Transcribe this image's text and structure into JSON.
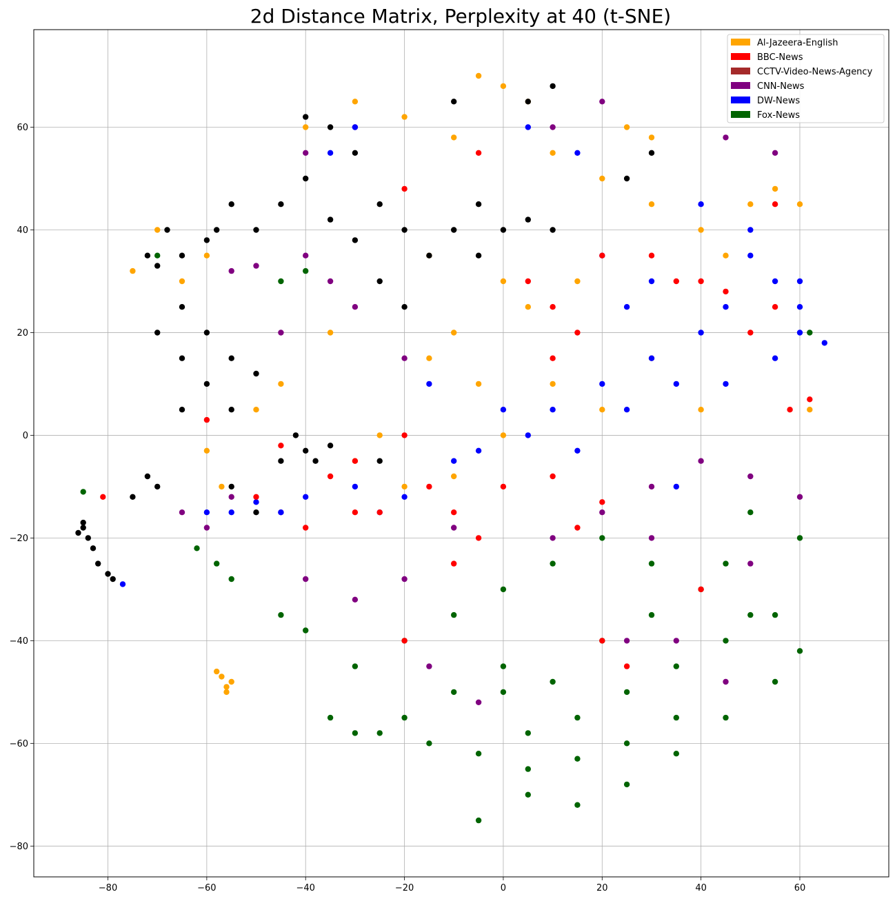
{
  "chart_data": {
    "type": "scatter",
    "title": "2d Distance Matrix, Perplexity at 40 (t-SNE)",
    "xlabel": "",
    "ylabel": "",
    "xlim": [
      -95,
      78
    ],
    "ylim": [
      -86,
      79
    ],
    "xticks": [
      -80,
      -60,
      -40,
      -20,
      0,
      20,
      40,
      60
    ],
    "yticks": [
      -80,
      -60,
      -40,
      -20,
      0,
      20,
      40,
      60
    ],
    "xtick_labels": [
      "−80",
      "−60",
      "−40",
      "−20",
      "0",
      "20",
      "40",
      "60"
    ],
    "ytick_labels": [
      "−80",
      "−60",
      "−40",
      "−20",
      "0",
      "20",
      "40",
      "60"
    ],
    "grid": true,
    "legend_position": "top-right",
    "legend": [
      {
        "name": "Al-Jazeera-English",
        "color": "#FFA500"
      },
      {
        "name": "BBC-News",
        "color": "#FF0000"
      },
      {
        "name": "CCTV-Video-News-Agency",
        "color": "#A52A2A"
      },
      {
        "name": "CNN-News",
        "color": "#800080"
      },
      {
        "name": "DW-News",
        "color": "#0000FF"
      },
      {
        "name": "Fox-News",
        "color": "#006400"
      }
    ],
    "series": [
      {
        "color": "#006400",
        "points": [
          [
            -5,
            -75
          ],
          [
            5,
            -70
          ],
          [
            15,
            -72
          ],
          [
            25,
            -68
          ],
          [
            35,
            -62
          ],
          [
            45,
            -55
          ],
          [
            55,
            -48
          ],
          [
            60,
            -42
          ],
          [
            50,
            -35
          ],
          [
            40,
            -30
          ],
          [
            30,
            -25
          ],
          [
            20,
            -20
          ],
          [
            10,
            -25
          ],
          [
            0,
            -30
          ],
          [
            -10,
            -35
          ],
          [
            -20,
            -40
          ],
          [
            -30,
            -45
          ],
          [
            -35,
            -55
          ],
          [
            -25,
            -58
          ],
          [
            -15,
            -60
          ],
          [
            -5,
            -62
          ],
          [
            5,
            -58
          ],
          [
            15,
            -55
          ],
          [
            25,
            -50
          ],
          [
            35,
            -45
          ],
          [
            45,
            -40
          ],
          [
            55,
            -35
          ],
          [
            -58,
            -25
          ],
          [
            -62,
            -22
          ],
          [
            -55,
            -28
          ],
          [
            -40,
            -38
          ],
          [
            -45,
            -35
          ],
          [
            60,
            -20
          ],
          [
            50,
            -15
          ],
          [
            0,
            -45
          ],
          [
            10,
            -48
          ],
          [
            20,
            -40
          ],
          [
            30,
            -35
          ],
          [
            -10,
            -50
          ],
          [
            -20,
            -55
          ],
          [
            5,
            -65
          ],
          [
            15,
            -63
          ],
          [
            25,
            -60
          ],
          [
            35,
            -55
          ],
          [
            0,
            -50
          ],
          [
            -30,
            -58
          ],
          [
            45,
            -25
          ],
          [
            -85,
            -11
          ],
          [
            -40,
            32
          ],
          [
            -45,
            30
          ],
          [
            62,
            20
          ],
          [
            -70,
            35
          ]
        ]
      },
      {
        "color": "#800080",
        "points": [
          [
            -50,
            33
          ],
          [
            -55,
            32
          ],
          [
            -40,
            35
          ],
          [
            -35,
            30
          ],
          [
            -30,
            25
          ],
          [
            -45,
            20
          ],
          [
            -20,
            15
          ],
          [
            10,
            -20
          ],
          [
            20,
            -15
          ],
          [
            30,
            -10
          ],
          [
            40,
            -5
          ],
          [
            50,
            -8
          ],
          [
            60,
            -12
          ],
          [
            -10,
            -18
          ],
          [
            -20,
            -28
          ],
          [
            -30,
            -32
          ],
          [
            -40,
            -28
          ],
          [
            -45,
            -15
          ],
          [
            -55,
            -12
          ],
          [
            -60,
            -18
          ],
          [
            55,
            55
          ],
          [
            45,
            58
          ],
          [
            20,
            65
          ],
          [
            10,
            60
          ],
          [
            -30,
            60
          ],
          [
            -40,
            55
          ],
          [
            -15,
            -45
          ],
          [
            25,
            -40
          ],
          [
            35,
            -40
          ],
          [
            45,
            -48
          ],
          [
            -5,
            -52
          ],
          [
            30,
            -20
          ],
          [
            -65,
            -15
          ],
          [
            50,
            -25
          ]
        ]
      },
      {
        "color": "#FFA500",
        "points": [
          [
            -57,
            -47
          ],
          [
            -56,
            -49
          ],
          [
            -55,
            -48
          ],
          [
            -58,
            -46
          ],
          [
            -56,
            -50
          ],
          [
            -40,
            60
          ],
          [
            -30,
            65
          ],
          [
            -20,
            62
          ],
          [
            -10,
            58
          ],
          [
            0,
            68
          ],
          [
            5,
            65
          ],
          [
            -5,
            70
          ],
          [
            10,
            55
          ],
          [
            20,
            50
          ],
          [
            30,
            45
          ],
          [
            40,
            40
          ],
          [
            -10,
            20
          ],
          [
            -15,
            15
          ],
          [
            0,
            30
          ],
          [
            5,
            25
          ],
          [
            -5,
            10
          ],
          [
            -25,
            0
          ],
          [
            -30,
            -5
          ],
          [
            -20,
            -10
          ],
          [
            10,
            10
          ],
          [
            20,
            5
          ],
          [
            30,
            15
          ],
          [
            40,
            5
          ],
          [
            50,
            45
          ],
          [
            55,
            48
          ],
          [
            45,
            35
          ],
          [
            -35,
            20
          ],
          [
            -45,
            10
          ],
          [
            -50,
            5
          ],
          [
            -60,
            35
          ],
          [
            -70,
            40
          ],
          [
            -75,
            32
          ],
          [
            -60,
            -3
          ],
          [
            -57,
            -10
          ],
          [
            25,
            60
          ],
          [
            30,
            58
          ],
          [
            15,
            30
          ],
          [
            -15,
            35
          ],
          [
            62,
            5
          ],
          [
            60,
            45
          ],
          [
            -65,
            30
          ],
          [
            0,
            0
          ],
          [
            -10,
            -8
          ]
        ]
      },
      {
        "color": "#000000",
        "points": [
          [
            -85,
            -18
          ],
          [
            -84,
            -20
          ],
          [
            -86,
            -19
          ],
          [
            -83,
            -22
          ],
          [
            -82,
            -25
          ],
          [
            -80,
            -27
          ],
          [
            -79,
            -28
          ],
          [
            -85,
            -17
          ],
          [
            -70,
            -10
          ],
          [
            -75,
            -12
          ],
          [
            -72,
            -8
          ],
          [
            -65,
            5
          ],
          [
            -60,
            10
          ],
          [
            -55,
            15
          ],
          [
            -65,
            15
          ],
          [
            -60,
            20
          ],
          [
            -70,
            20
          ],
          [
            -55,
            5
          ],
          [
            -50,
            12
          ],
          [
            -58,
            40
          ],
          [
            -55,
            45
          ],
          [
            -50,
            40
          ],
          [
            -45,
            45
          ],
          [
            -40,
            50
          ],
          [
            -35,
            42
          ],
          [
            -30,
            38
          ],
          [
            -25,
            45
          ],
          [
            -20,
            40
          ],
          [
            -15,
            35
          ],
          [
            -25,
            30
          ],
          [
            -20,
            25
          ],
          [
            -10,
            40
          ],
          [
            -5,
            45
          ],
          [
            0,
            40
          ],
          [
            5,
            42
          ],
          [
            10,
            40
          ],
          [
            -5,
            35
          ],
          [
            -30,
            55
          ],
          [
            -35,
            60
          ],
          [
            -40,
            62
          ],
          [
            5,
            65
          ],
          [
            10,
            68
          ],
          [
            -10,
            65
          ],
          [
            -40,
            -3
          ],
          [
            -38,
            -5
          ],
          [
            -42,
            0
          ],
          [
            -35,
            -2
          ],
          [
            -60,
            38
          ],
          [
            -65,
            35
          ],
          [
            -68,
            40
          ],
          [
            -50,
            -15
          ],
          [
            -55,
            -10
          ],
          [
            -45,
            -5
          ],
          [
            -25,
            -5
          ],
          [
            30,
            55
          ],
          [
            25,
            50
          ],
          [
            -70,
            33
          ],
          [
            -72,
            35
          ],
          [
            -65,
            25
          ]
        ]
      },
      {
        "color": "#0000FF",
        "points": [
          [
            50,
            35
          ],
          [
            55,
            30
          ],
          [
            60,
            25
          ],
          [
            45,
            25
          ],
          [
            40,
            20
          ],
          [
            35,
            10
          ],
          [
            30,
            15
          ],
          [
            25,
            5
          ],
          [
            20,
            10
          ],
          [
            10,
            5
          ],
          [
            5,
            0
          ],
          [
            0,
            5
          ],
          [
            -5,
            -3
          ],
          [
            -10,
            -5
          ],
          [
            -20,
            -12
          ],
          [
            -25,
            -15
          ],
          [
            -30,
            -10
          ],
          [
            -40,
            -12
          ],
          [
            -45,
            -15
          ],
          [
            -55,
            -15
          ],
          [
            -50,
            -13
          ],
          [
            15,
            -3
          ],
          [
            35,
            -10
          ],
          [
            45,
            10
          ],
          [
            55,
            15
          ],
          [
            60,
            30
          ],
          [
            50,
            40
          ],
          [
            40,
            45
          ],
          [
            30,
            30
          ],
          [
            20,
            35
          ],
          [
            -35,
            55
          ],
          [
            -30,
            60
          ],
          [
            5,
            60
          ],
          [
            15,
            55
          ],
          [
            60,
            20
          ],
          [
            -77,
            -29
          ],
          [
            -60,
            -15
          ],
          [
            65,
            18
          ],
          [
            -15,
            10
          ],
          [
            25,
            25
          ]
        ]
      },
      {
        "color": "#FF0000",
        "points": [
          [
            5,
            30
          ],
          [
            10,
            25
          ],
          [
            15,
            20
          ],
          [
            20,
            35
          ],
          [
            40,
            30
          ],
          [
            45,
            28
          ],
          [
            50,
            20
          ],
          [
            55,
            45
          ],
          [
            -20,
            0
          ],
          [
            -15,
            -10
          ],
          [
            -10,
            -15
          ],
          [
            -5,
            -20
          ],
          [
            0,
            -10
          ],
          [
            10,
            -8
          ],
          [
            20,
            -13
          ],
          [
            -30,
            -5
          ],
          [
            -35,
            -8
          ],
          [
            -40,
            -18
          ],
          [
            -50,
            -12
          ],
          [
            -81,
            -12
          ],
          [
            -60,
            3
          ],
          [
            20,
            -40
          ],
          [
            30,
            35
          ],
          [
            35,
            30
          ],
          [
            -25,
            -15
          ],
          [
            -30,
            -15
          ],
          [
            10,
            15
          ],
          [
            55,
            25
          ],
          [
            -5,
            55
          ],
          [
            -20,
            48
          ],
          [
            58,
            5
          ],
          [
            -10,
            -25
          ],
          [
            15,
            -18
          ],
          [
            -45,
            -2
          ],
          [
            62,
            7
          ],
          [
            25,
            -45
          ],
          [
            40,
            -30
          ],
          [
            -20,
            -40
          ]
        ]
      }
    ]
  }
}
